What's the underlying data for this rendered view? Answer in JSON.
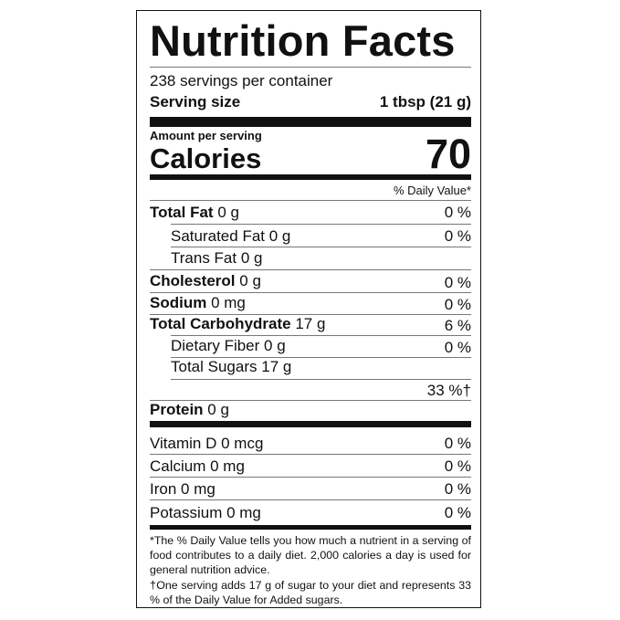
{
  "label": {
    "title": "Nutrition Facts",
    "servings_per_container": "238 servings per container",
    "serving_size_label": "Serving size",
    "serving_size_value": "1 tbsp (21 g)",
    "amount_per_serving": "Amount per serving",
    "calories_label": "Calories",
    "calories_value": "70",
    "daily_value_header": "% Daily Value*",
    "nutrients": [
      {
        "name": "Total Fat",
        "amount": "0 g",
        "dv": "0 %"
      },
      {
        "name": "Saturated Fat",
        "amount": "0 g",
        "dv": "0 %"
      },
      {
        "name": "Trans Fat",
        "amount": "0 g"
      },
      {
        "name": "Cholesterol",
        "amount": "0 g",
        "dv": "0 %"
      },
      {
        "name": "Sodium",
        "amount": "0 mg",
        "dv": "0 %"
      },
      {
        "name": "Total Carbohydrate",
        "amount": "17 g",
        "dv": "6 %"
      },
      {
        "name": "Dietary Fiber",
        "amount": "0 g",
        "dv": "0 %"
      },
      {
        "name": "Total Sugars",
        "amount": "17 g"
      },
      {
        "dv": "33 %†"
      },
      {
        "name": "Protein",
        "amount": "0 g"
      }
    ],
    "vitamins": [
      {
        "name": "Vitamin D  0 mcg",
        "dv": "0 %"
      },
      {
        "name": "Calcium 0 mg",
        "dv": "0 %"
      },
      {
        "name": "Iron 0 mg",
        "dv": "0 %"
      },
      {
        "name": "Potassium 0 mg",
        "dv": "0 %"
      }
    ],
    "footnote_dv": "*The % Daily Value tells you how much a nutrient in a serving of food contributes to a daily diet. 2,000 calories a day is used for general nutrition advice.",
    "footnote_sugar": "†One serving adds 17 g of sugar to your diet and represents 33 % of the Daily Value for Added sugars."
  }
}
